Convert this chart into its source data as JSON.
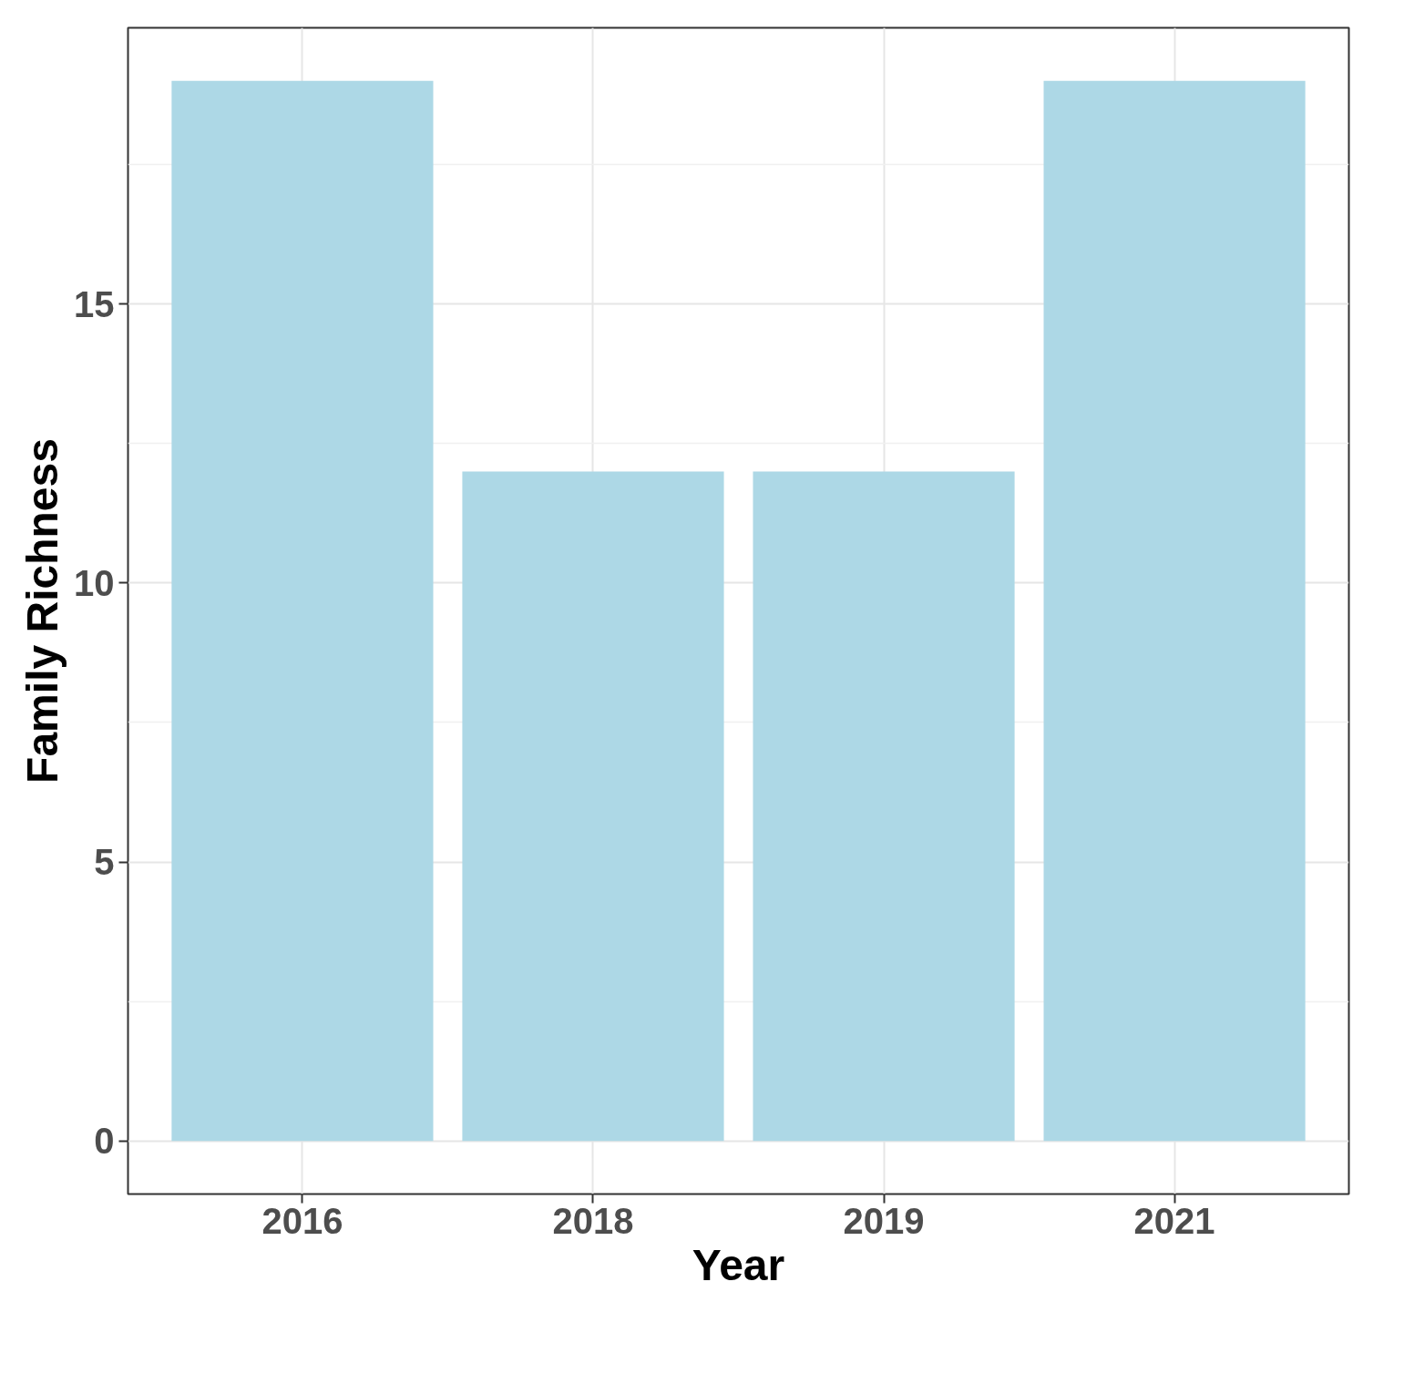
{
  "chart_data": {
    "type": "bar",
    "xlabel": "Year",
    "ylabel": "Family Richness",
    "categories": [
      "2016",
      "2018",
      "2019",
      "2021"
    ],
    "values": [
      19,
      12,
      12,
      19
    ],
    "color": "#add8e6",
    "ylim": [
      -0.95,
      19.95
    ],
    "yticks": [
      0,
      5,
      10,
      15
    ],
    "grid": true
  }
}
